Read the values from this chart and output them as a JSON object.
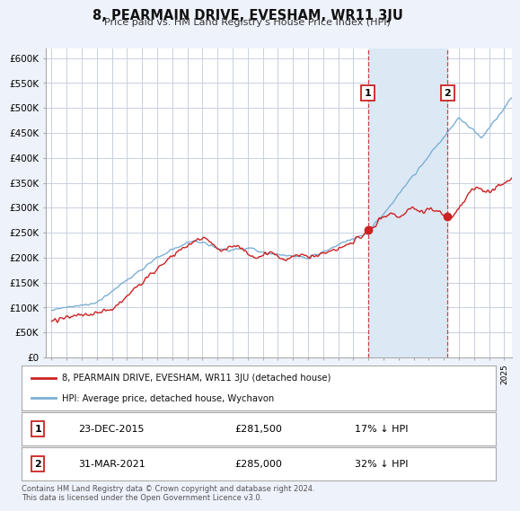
{
  "title": "8, PEARMAIN DRIVE, EVESHAM, WR11 3JU",
  "subtitle": "Price paid vs. HM Land Registry's House Price Index (HPI)",
  "ylabel_ticks": [
    "£0",
    "£50K",
    "£100K",
    "£150K",
    "£200K",
    "£250K",
    "£300K",
    "£350K",
    "£400K",
    "£450K",
    "£500K",
    "£550K",
    "£600K"
  ],
  "ytick_values": [
    0,
    50000,
    100000,
    150000,
    200000,
    250000,
    300000,
    350000,
    400000,
    450000,
    500000,
    550000,
    600000
  ],
  "ylim": [
    0,
    620000
  ],
  "hpi_color": "#7bafd4",
  "price_color": "#cc2222",
  "sale1_year": 2015.97,
  "sale1_price": 281500,
  "sale2_year": 2021.25,
  "sale2_price": 285000,
  "sale1_date": "23-DEC-2015",
  "sale2_date": "31-MAR-2021",
  "sale1_pct": "17% ↓ HPI",
  "sale2_pct": "32% ↓ HPI",
  "legend_label_red": "8, PEARMAIN DRIVE, EVESHAM, WR11 3JU (detached house)",
  "legend_label_blue": "HPI: Average price, detached house, Wychavon",
  "footnote": "Contains HM Land Registry data © Crown copyright and database right 2024.\nThis data is licensed under the Open Government Licence v3.0.",
  "background_color": "#eef2fb",
  "plot_bg_color": "#ffffff",
  "shade_color": "#dde8f5",
  "grid_color": "#c8cfe0"
}
